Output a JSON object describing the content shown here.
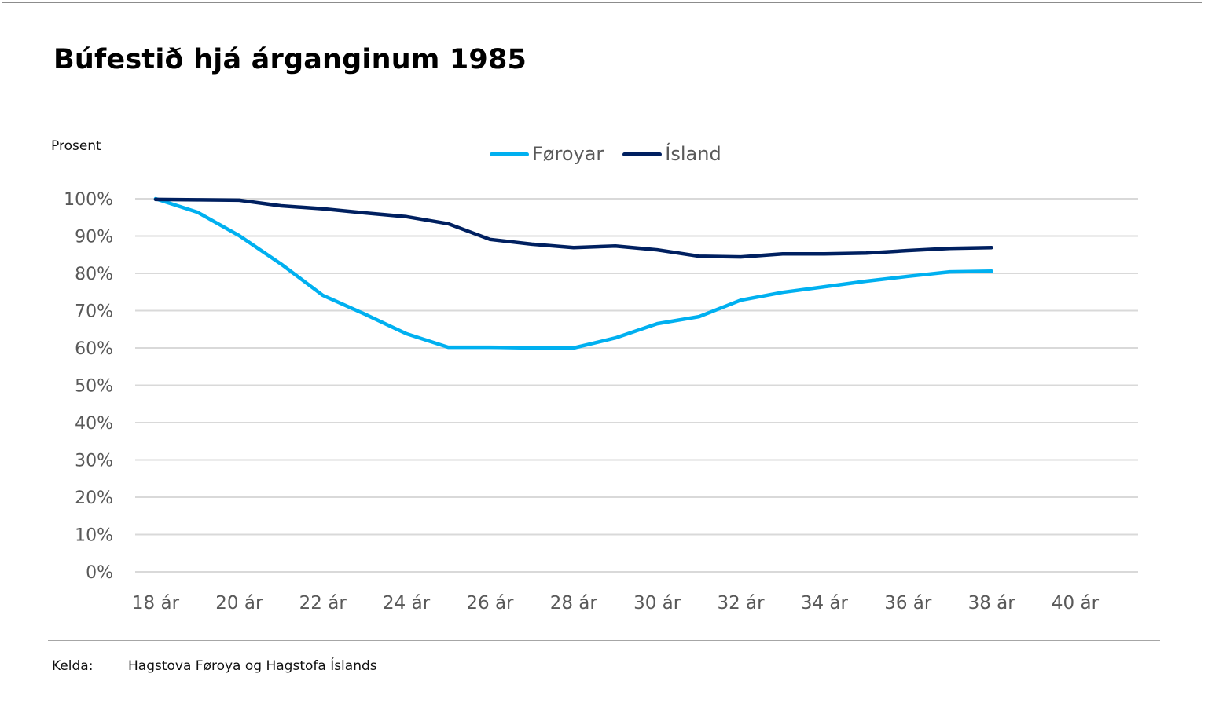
{
  "chart_data": {
    "type": "line",
    "title": "Búfestið hjá árganginum 1985",
    "ylabel": "Prosent",
    "xlabel": "",
    "ylim": [
      0,
      100
    ],
    "yticks": [
      0,
      10,
      20,
      30,
      40,
      50,
      60,
      70,
      80,
      90,
      100
    ],
    "ytick_labels": [
      "0%",
      "10%",
      "20%",
      "30%",
      "40%",
      "50%",
      "60%",
      "70%",
      "80%",
      "90%",
      "100%"
    ],
    "xlim": [
      18,
      40
    ],
    "xticks": [
      18,
      20,
      22,
      24,
      26,
      28,
      30,
      32,
      34,
      36,
      38,
      40
    ],
    "xtick_labels": [
      "18 ár",
      "20 ár",
      "22 ár",
      "24 ár",
      "26 ár",
      "28 ár",
      "30 ár",
      "32 ár",
      "34 ár",
      "36 ár",
      "38 ár",
      "40 ár"
    ],
    "grid": true,
    "legend_position": "top-center",
    "x": [
      18,
      19,
      20,
      21,
      22,
      23,
      24,
      25,
      26,
      27,
      28,
      29,
      30,
      31,
      32,
      33,
      34,
      35,
      36,
      37,
      38
    ],
    "series": [
      {
        "name": "Føroyar",
        "color": "#00B0F0",
        "values": [
          100,
          96.4,
          90.1,
          82.5,
          74.1,
          69.1,
          63.8,
          60.2,
          60.2,
          60.0,
          60.0,
          62.7,
          66.5,
          68.4,
          72.8,
          74.9,
          76.4,
          77.9,
          79.2,
          80.4,
          80.6
        ]
      },
      {
        "name": "Ísland",
        "color": "#002060",
        "values": [
          99.8,
          99.7,
          99.6,
          98.1,
          97.3,
          96.2,
          95.2,
          93.3,
          89.1,
          87.8,
          86.9,
          87.3,
          86.3,
          84.6,
          84.4,
          85.2,
          85.2,
          85.4,
          86.1,
          86.7,
          86.9
        ]
      }
    ]
  },
  "footer": {
    "source_label": "Kelda:",
    "source_text": "Hagstova Føroya og Hagstofa Íslands"
  }
}
